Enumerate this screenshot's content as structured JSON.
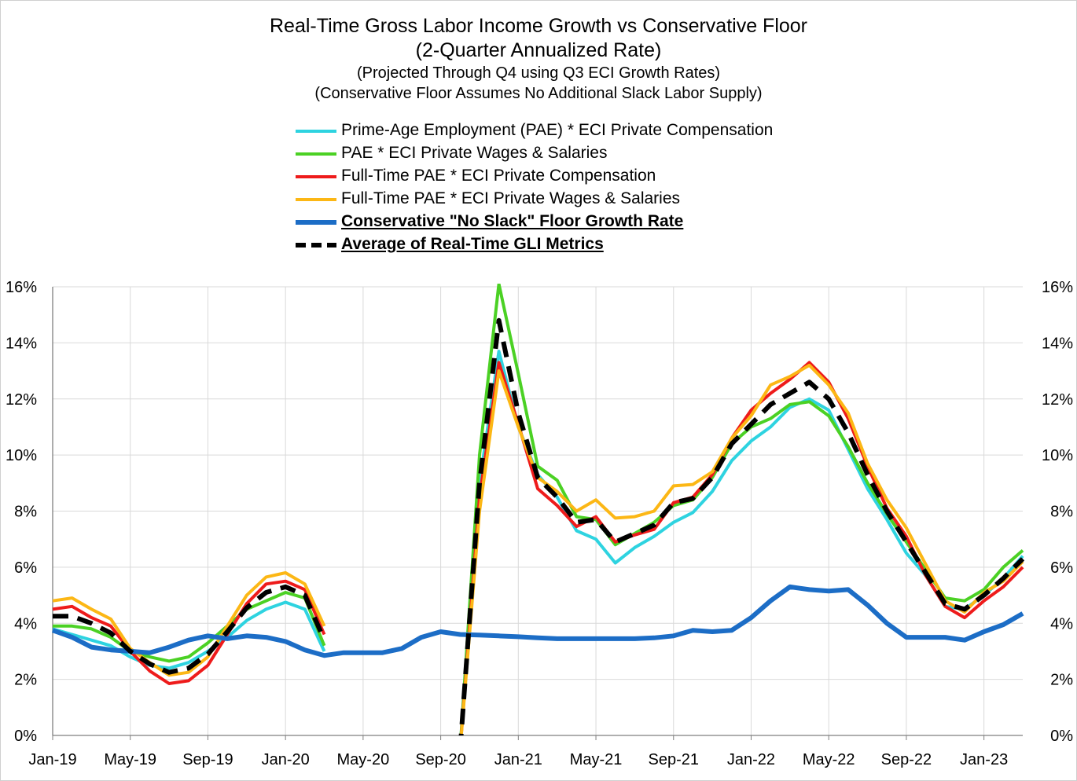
{
  "chart_data": {
    "type": "line",
    "title": "Real-Time Gross Labor Income Growth vs Conservative Floor",
    "title_line2": "(2-Quarter Annualized Rate)",
    "subtitle_1": "(Projected Through Q4 using Q3 ECI Growth Rates)",
    "subtitle_2": "(Conservative Floor Assumes No Additional Slack Labor Supply)",
    "xlabel": "",
    "ylabel": "",
    "ylim": [
      0,
      16
    ],
    "y_ticks": [
      "0%",
      "2%",
      "4%",
      "6%",
      "8%",
      "10%",
      "12%",
      "14%",
      "16%"
    ],
    "x_ticks": [
      "Jan-19",
      "May-19",
      "Sep-19",
      "Jan-20",
      "May-20",
      "Sep-20",
      "Jan-21",
      "May-21",
      "Sep-21",
      "Jan-22",
      "May-22",
      "Sep-22",
      "Jan-23"
    ],
    "x": [
      "Jan-19",
      "Feb-19",
      "Mar-19",
      "Apr-19",
      "May-19",
      "Jun-19",
      "Jul-19",
      "Aug-19",
      "Sep-19",
      "Oct-19",
      "Nov-19",
      "Dec-19",
      "Jan-20",
      "Feb-20",
      "Mar-20",
      "Apr-20",
      "May-20",
      "Jun-20",
      "Jul-20",
      "Aug-20",
      "Sep-20",
      "Oct-20",
      "Nov-20",
      "Dec-20",
      "Jan-21",
      "Feb-21",
      "Mar-21",
      "Apr-21",
      "May-21",
      "Jun-21",
      "Jul-21",
      "Aug-21",
      "Sep-21",
      "Oct-21",
      "Nov-21",
      "Dec-21",
      "Jan-22",
      "Feb-22",
      "Mar-22",
      "Apr-22",
      "May-22",
      "Jun-22",
      "Jul-22",
      "Aug-22",
      "Sep-22",
      "Oct-22",
      "Nov-22",
      "Dec-22",
      "Jan-23",
      "Feb-23",
      "Mar-23"
    ],
    "series": [
      {
        "name": "Prime-Age Employment (PAE) * ECI Private Compensation",
        "color": "#2ed3e0",
        "style": "solid",
        "values": [
          3.8,
          3.6,
          3.4,
          3.2,
          2.8,
          2.5,
          2.4,
          2.6,
          3.0,
          3.5,
          4.1,
          4.5,
          4.75,
          4.5,
          3.0,
          null,
          null,
          null,
          null,
          null,
          null,
          -0.5,
          9.0,
          13.7,
          11.0,
          9.3,
          8.5,
          7.3,
          7.0,
          6.15,
          6.7,
          7.1,
          7.6,
          7.95,
          8.7,
          9.8,
          10.5,
          11.0,
          11.7,
          12.0,
          11.6,
          10.2,
          8.8,
          7.7,
          6.5,
          5.7,
          4.6,
          4.5,
          5.0,
          5.6,
          6.4
        ]
      },
      {
        "name": "PAE * ECI Private Wages & Salaries",
        "color": "#4bd124",
        "style": "solid",
        "values": [
          3.9,
          3.9,
          3.8,
          3.5,
          3.0,
          2.8,
          2.65,
          2.8,
          3.3,
          3.9,
          4.5,
          4.8,
          5.1,
          4.9,
          3.2,
          null,
          null,
          null,
          null,
          null,
          null,
          -0.5,
          10.0,
          16.1,
          12.9,
          9.6,
          9.1,
          7.8,
          7.7,
          6.8,
          7.2,
          7.6,
          8.2,
          8.4,
          9.2,
          10.4,
          11.0,
          11.3,
          11.8,
          11.9,
          11.4,
          10.3,
          9.0,
          7.9,
          6.9,
          5.9,
          4.9,
          4.8,
          5.2,
          6.0,
          6.6
        ]
      },
      {
        "name": "Full-Time PAE * ECI Private Compensation",
        "color": "#ee1b1b",
        "style": "solid",
        "values": [
          4.5,
          4.6,
          4.2,
          3.9,
          3.0,
          2.3,
          1.85,
          1.95,
          2.5,
          3.6,
          4.7,
          5.4,
          5.5,
          5.2,
          3.6,
          null,
          null,
          null,
          null,
          null,
          null,
          -0.5,
          8.5,
          13.3,
          11.1,
          8.8,
          8.2,
          7.45,
          7.8,
          6.9,
          7.15,
          7.35,
          8.3,
          8.5,
          9.3,
          10.6,
          11.6,
          12.2,
          12.7,
          13.3,
          12.6,
          11.3,
          9.6,
          8.1,
          7.1,
          5.7,
          4.6,
          4.2,
          4.8,
          5.3,
          6.0
        ]
      },
      {
        "name": "Full-Time PAE * ECI Private Wages & Salaries",
        "color": "#fcb715",
        "style": "solid",
        "values": [
          4.8,
          4.9,
          4.5,
          4.15,
          3.1,
          2.6,
          2.15,
          2.25,
          2.8,
          3.9,
          5.0,
          5.65,
          5.8,
          5.4,
          3.9,
          null,
          null,
          null,
          null,
          null,
          null,
          -0.5,
          8.0,
          13.0,
          11.0,
          9.2,
          8.7,
          8.0,
          8.4,
          7.75,
          7.8,
          8.0,
          8.9,
          8.95,
          9.4,
          10.6,
          11.4,
          12.5,
          12.8,
          13.2,
          12.5,
          11.5,
          9.7,
          8.4,
          7.4,
          6.1,
          4.8,
          4.4,
          5.1,
          5.5,
          6.2
        ]
      },
      {
        "name": "Conservative \"No Slack\" Floor Growth Rate",
        "color": "#1c6dc6",
        "style": "solid-bold",
        "values": [
          3.75,
          3.5,
          3.15,
          3.05,
          3.0,
          2.95,
          3.15,
          3.4,
          3.55,
          3.45,
          3.55,
          3.5,
          3.35,
          3.05,
          2.85,
          2.95,
          2.95,
          2.95,
          3.1,
          3.5,
          3.7,
          3.6,
          3.58,
          3.55,
          3.52,
          3.48,
          3.45,
          3.45,
          3.45,
          3.45,
          3.45,
          3.48,
          3.55,
          3.75,
          3.7,
          3.75,
          4.2,
          4.8,
          5.3,
          5.2,
          5.15,
          5.2,
          4.65,
          4.0,
          3.5,
          3.5,
          3.5,
          3.4,
          3.7,
          3.95,
          4.35
        ]
      },
      {
        "name": "Average of Real-Time GLI Metrics",
        "color": "#000000",
        "style": "dashed",
        "values": [
          4.25,
          4.25,
          4.0,
          3.65,
          3.0,
          2.55,
          2.25,
          2.4,
          2.9,
          3.7,
          4.55,
          5.1,
          5.3,
          5.0,
          3.4,
          null,
          null,
          null,
          null,
          null,
          null,
          -0.5,
          9.0,
          14.8,
          11.5,
          9.2,
          8.5,
          7.6,
          7.7,
          6.9,
          7.2,
          7.5,
          8.3,
          8.45,
          9.2,
          10.4,
          11.1,
          11.8,
          12.2,
          12.6,
          12.0,
          10.8,
          9.3,
          8.0,
          6.9,
          5.8,
          4.7,
          4.5,
          5.0,
          5.6,
          6.3
        ]
      }
    ]
  }
}
